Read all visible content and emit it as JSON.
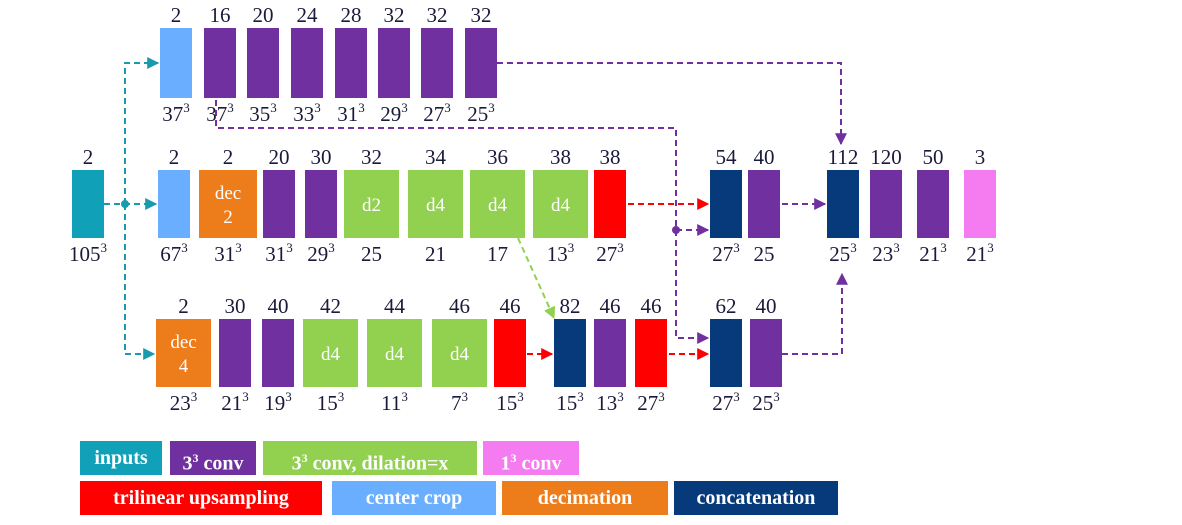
{
  "colors": {
    "inputs": "#10A0B8",
    "conv3": "#7030A0",
    "dilated": "#92D050",
    "conv1": "#F57CF0",
    "upsampling": "#FF0000",
    "crop": "#6AAEFF",
    "decimation": "#ED7D1A",
    "concat": "#063A7A",
    "arrow_teal": "#1A9AB0",
    "arrow_purple": "#7030A0",
    "arrow_red": "#FF0000",
    "arrow_green": "#92D050"
  },
  "blocks": [
    {
      "id": "t-crop",
      "kind": "crop",
      "top": "2",
      "bottom": "37",
      "exp": "3",
      "inner": []
    },
    {
      "id": "t-c1",
      "kind": "conv3",
      "top": "16",
      "bottom": "37",
      "exp": "3",
      "inner": []
    },
    {
      "id": "t-c2",
      "kind": "conv3",
      "top": "20",
      "bottom": "35",
      "exp": "3",
      "inner": []
    },
    {
      "id": "t-c3",
      "kind": "conv3",
      "top": "24",
      "bottom": "33",
      "exp": "3",
      "inner": []
    },
    {
      "id": "t-c4",
      "kind": "conv3",
      "top": "28",
      "bottom": "31",
      "exp": "3",
      "inner": []
    },
    {
      "id": "t-c5",
      "kind": "conv3",
      "top": "32",
      "bottom": "29",
      "exp": "3",
      "inner": []
    },
    {
      "id": "t-c6",
      "kind": "conv3",
      "top": "32",
      "bottom": "27",
      "exp": "3",
      "inner": []
    },
    {
      "id": "t-c7",
      "kind": "conv3",
      "top": "32",
      "bottom": "25",
      "exp": "3",
      "inner": []
    },
    {
      "id": "m-input",
      "kind": "inputs",
      "top": "2",
      "bottom": "105",
      "exp": "3",
      "inner": []
    },
    {
      "id": "m-crop",
      "kind": "crop",
      "top": "2",
      "bottom": "67",
      "exp": "3",
      "inner": []
    },
    {
      "id": "m-dec",
      "kind": "decimation",
      "top": "2",
      "bottom": "31",
      "exp": "3",
      "inner": [
        "dec",
        "2"
      ]
    },
    {
      "id": "m-c1",
      "kind": "conv3",
      "top": "20",
      "bottom": "31",
      "exp": "3",
      "inner": []
    },
    {
      "id": "m-c2",
      "kind": "conv3",
      "top": "30",
      "bottom": "29",
      "exp": "3",
      "inner": []
    },
    {
      "id": "m-d1",
      "kind": "dilated",
      "top": "32",
      "bottom": "25",
      "exp": "",
      "inner": [
        "d2"
      ]
    },
    {
      "id": "m-d2",
      "kind": "dilated",
      "top": "34",
      "bottom": "21",
      "exp": "",
      "inner": [
        "d4"
      ]
    },
    {
      "id": "m-d3",
      "kind": "dilated",
      "top": "36",
      "bottom": "17",
      "exp": "",
      "inner": [
        "d4"
      ]
    },
    {
      "id": "m-d4",
      "kind": "dilated",
      "top": "38",
      "bottom": "13",
      "exp": "3",
      "inner": [
        "d4"
      ]
    },
    {
      "id": "m-up",
      "kind": "upsampling",
      "top": "38",
      "bottom": "27",
      "exp": "3",
      "inner": []
    },
    {
      "id": "m-cat1",
      "kind": "concat",
      "top": "54",
      "bottom": "27",
      "exp": "3",
      "inner": []
    },
    {
      "id": "m-c3",
      "kind": "conv3",
      "top": "40",
      "bottom": "25",
      "exp": "",
      "inner": []
    },
    {
      "id": "m-cat2",
      "kind": "concat",
      "top": "112",
      "bottom": "25",
      "exp": "3",
      "inner": []
    },
    {
      "id": "m-c4",
      "kind": "conv3",
      "top": "120",
      "bottom": "23",
      "exp": "3",
      "inner": []
    },
    {
      "id": "m-c5",
      "kind": "conv3",
      "top": "50",
      "bottom": "21",
      "exp": "3",
      "inner": []
    },
    {
      "id": "m-out",
      "kind": "conv1",
      "top": "3",
      "bottom": "21",
      "exp": "3",
      "inner": []
    },
    {
      "id": "b-dec",
      "kind": "decimation",
      "top": "2",
      "bottom": "23",
      "exp": "3",
      "inner": [
        "dec",
        "4"
      ]
    },
    {
      "id": "b-c1",
      "kind": "conv3",
      "top": "30",
      "bottom": "21",
      "exp": "3",
      "inner": []
    },
    {
      "id": "b-c2",
      "kind": "conv3",
      "top": "40",
      "bottom": "19",
      "exp": "3",
      "inner": []
    },
    {
      "id": "b-d1",
      "kind": "dilated",
      "top": "42",
      "bottom": "15",
      "exp": "3",
      "inner": [
        "d4"
      ]
    },
    {
      "id": "b-d2",
      "kind": "dilated",
      "top": "44",
      "bottom": "11",
      "exp": "3",
      "inner": [
        "d4"
      ]
    },
    {
      "id": "b-d3",
      "kind": "dilated",
      "top": "46",
      "bottom": "7",
      "exp": "3",
      "inner": [
        "d4"
      ]
    },
    {
      "id": "b-up1",
      "kind": "upsampling",
      "top": "46",
      "bottom": "15",
      "exp": "3",
      "inner": []
    },
    {
      "id": "b-cat1",
      "kind": "concat",
      "top": "82",
      "bottom": "15",
      "exp": "3",
      "inner": []
    },
    {
      "id": "b-c3",
      "kind": "conv3",
      "top": "46",
      "bottom": "13",
      "exp": "3",
      "inner": []
    },
    {
      "id": "b-up2",
      "kind": "upsampling",
      "top": "46",
      "bottom": "27",
      "exp": "3",
      "inner": []
    },
    {
      "id": "b-cat2",
      "kind": "concat",
      "top": "62",
      "bottom": "27",
      "exp": "3",
      "inner": []
    },
    {
      "id": "b-c4",
      "kind": "conv3",
      "top": "40",
      "bottom": "25",
      "exp": "3",
      "inner": []
    }
  ],
  "legend": [
    {
      "kind": "inputs",
      "text": "inputs",
      "exp": "",
      "rest": ""
    },
    {
      "kind": "conv3",
      "text": "3",
      "exp": "3",
      "rest": " conv"
    },
    {
      "kind": "dilated",
      "text": "3",
      "exp": "3",
      "rest": " conv, dilation=x"
    },
    {
      "kind": "conv1",
      "text": "1",
      "exp": "3",
      "rest": " conv"
    },
    {
      "kind": "upsampling",
      "text": "trilinear upsampling",
      "exp": "",
      "rest": ""
    },
    {
      "kind": "crop",
      "text": "center crop",
      "exp": "",
      "rest": ""
    },
    {
      "kind": "decimation",
      "text": "decimation",
      "exp": "",
      "rest": ""
    },
    {
      "kind": "concat",
      "text": "concatenation",
      "exp": "",
      "rest": ""
    }
  ]
}
